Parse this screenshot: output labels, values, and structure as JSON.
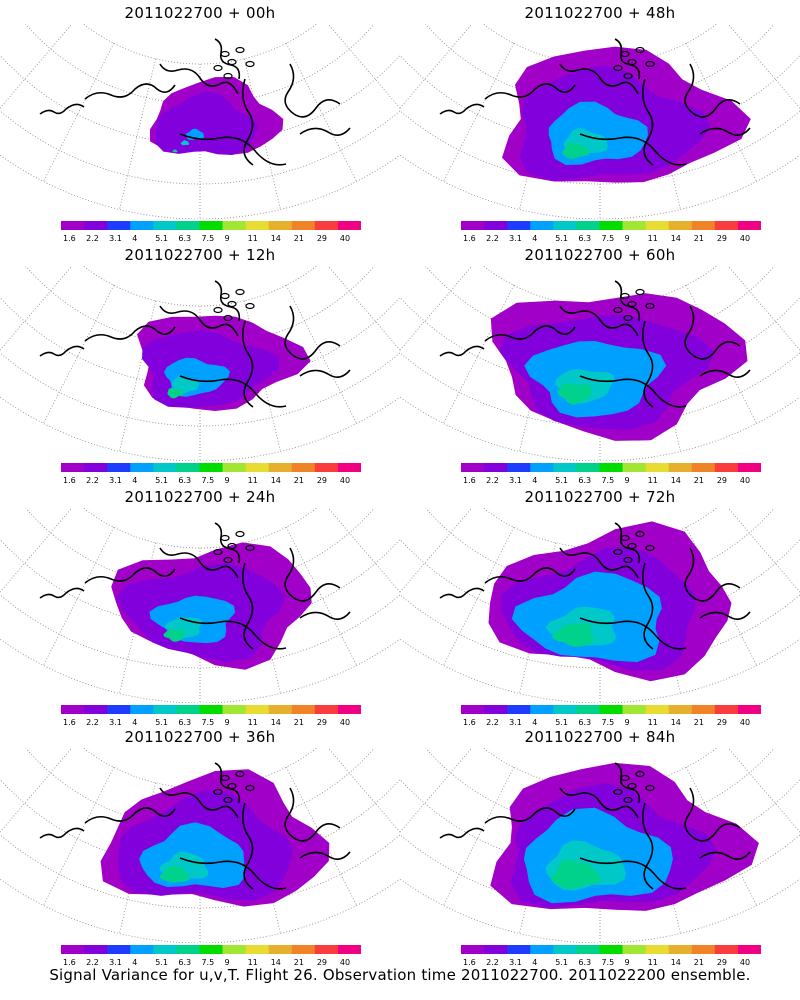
{
  "panels": [
    {
      "title": "2011022700 + 00h",
      "colorbar_labels": [
        "1.6",
        "2.2",
        "3.1",
        "4",
        "5.1",
        "6.3",
        "7.5",
        "9",
        "11",
        "14",
        "21",
        "29",
        "40"
      ],
      "spread": 0.55,
      "intensity": 0.15
    },
    {
      "title": "2011022700 + 48h",
      "colorbar_labels": [
        "1.6",
        "2.2",
        "3.1",
        "4",
        "5.1",
        "6.3",
        "7.5",
        "9",
        "11",
        "14",
        "21",
        "29",
        "40"
      ],
      "spread": 1.0,
      "intensity": 0.45
    },
    {
      "title": "2011022700 + 12h",
      "colorbar_labels": [
        "1.6",
        "2.2",
        "3.1",
        "4",
        "5.1",
        "6.3",
        "7.5",
        "9",
        "11",
        "14",
        "21",
        "29",
        "40"
      ],
      "spread": 0.7,
      "intensity": 0.4
    },
    {
      "title": "2011022700 + 60h",
      "colorbar_labels": [
        "1.6",
        "2.2",
        "3.1",
        "4",
        "5.1",
        "6.3",
        "7.5",
        "9",
        "11",
        "14",
        "21",
        "29",
        "40"
      ],
      "spread": 1.05,
      "intensity": 0.55
    },
    {
      "title": "2011022700 + 24h",
      "colorbar_labels": [
        "1.6",
        "2.2",
        "3.1",
        "4",
        "5.1",
        "6.3",
        "7.5",
        "9",
        "11",
        "14",
        "21",
        "29",
        "40"
      ],
      "spread": 0.85,
      "intensity": 0.42
    },
    {
      "title": "2011022700 + 72h",
      "colorbar_labels": [
        "1.6",
        "2.2",
        "3.1",
        "4",
        "5.1",
        "6.3",
        "7.5",
        "9",
        "11",
        "14",
        "21",
        "29",
        "40"
      ],
      "spread": 1.05,
      "intensity": 0.65
    },
    {
      "title": "2011022700 + 36h",
      "colorbar_labels": [
        "1.6",
        "2.2",
        "3.1",
        "4",
        "5.1",
        "6.3",
        "7.5",
        "9",
        "11",
        "14",
        "21",
        "29",
        "40"
      ],
      "spread": 0.95,
      "intensity": 0.5
    },
    {
      "title": "2011022700 + 84h",
      "colorbar_labels": [
        "1.6",
        "2.2",
        "3.1",
        "4",
        "5.1",
        "6.3",
        "7.5",
        "9",
        "11",
        "14",
        "21",
        "29",
        "40"
      ],
      "spread": 1.08,
      "intensity": 0.75
    }
  ],
  "colorbar_colors": [
    "#a000c8",
    "#8200dc",
    "#1e3cff",
    "#00a0ff",
    "#00c8c8",
    "#00d28c",
    "#00dc00",
    "#a0e632",
    "#e6dc32",
    "#e6af2d",
    "#f08228",
    "#fa3c3c",
    "#f00082"
  ],
  "caption": "Signal Variance for u,v,T. Flight 26. Observation time 2011022700. 2011022200 ensemble."
}
